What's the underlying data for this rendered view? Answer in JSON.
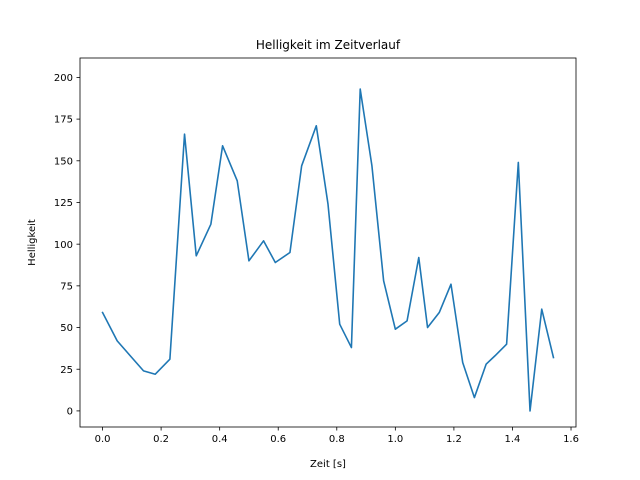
{
  "chart_data": {
    "type": "line",
    "title": "Helligkeit im Zeitverlauf",
    "xlabel": "Zeit [s]",
    "ylabel": "Helligkeit",
    "xlim": [
      -0.077,
      1.617
    ],
    "ylim": [
      -9.65,
      211.65
    ],
    "xticks": [
      0.0,
      0.2,
      0.4,
      0.6,
      0.8,
      1.0,
      1.2,
      1.4,
      1.6
    ],
    "xtick_labels": [
      "0.0",
      "0.2",
      "0.4",
      "0.6",
      "0.8",
      "1.0",
      "1.2",
      "1.4",
      "1.6"
    ],
    "yticks": [
      0,
      25,
      50,
      75,
      100,
      125,
      150,
      175,
      200
    ],
    "ytick_labels": [
      "0",
      "25",
      "50",
      "75",
      "100",
      "125",
      "150",
      "175",
      "200"
    ],
    "grid": false,
    "series": [
      {
        "color": "#1f77b4",
        "x": [
          0.0,
          0.05,
          0.09,
          0.14,
          0.18,
          0.23,
          0.28,
          0.32,
          0.37,
          0.41,
          0.46,
          0.5,
          0.55,
          0.59,
          0.64,
          0.68,
          0.73,
          0.77,
          0.81,
          0.85,
          0.88,
          0.92,
          0.96,
          1.0,
          1.04,
          1.08,
          1.11,
          1.15,
          1.19,
          1.23,
          1.27,
          1.31,
          1.34,
          1.38,
          1.42,
          1.46,
          1.5,
          1.54
        ],
        "y": [
          59,
          42,
          34,
          24,
          22,
          31,
          166,
          93,
          112,
          159,
          138,
          90,
          102,
          89,
          95,
          147,
          171,
          124,
          52,
          38,
          193,
          147,
          78,
          49,
          54,
          92,
          50,
          59,
          76,
          29,
          8,
          28,
          33,
          40,
          149,
          0,
          61,
          32
        ]
      }
    ]
  }
}
